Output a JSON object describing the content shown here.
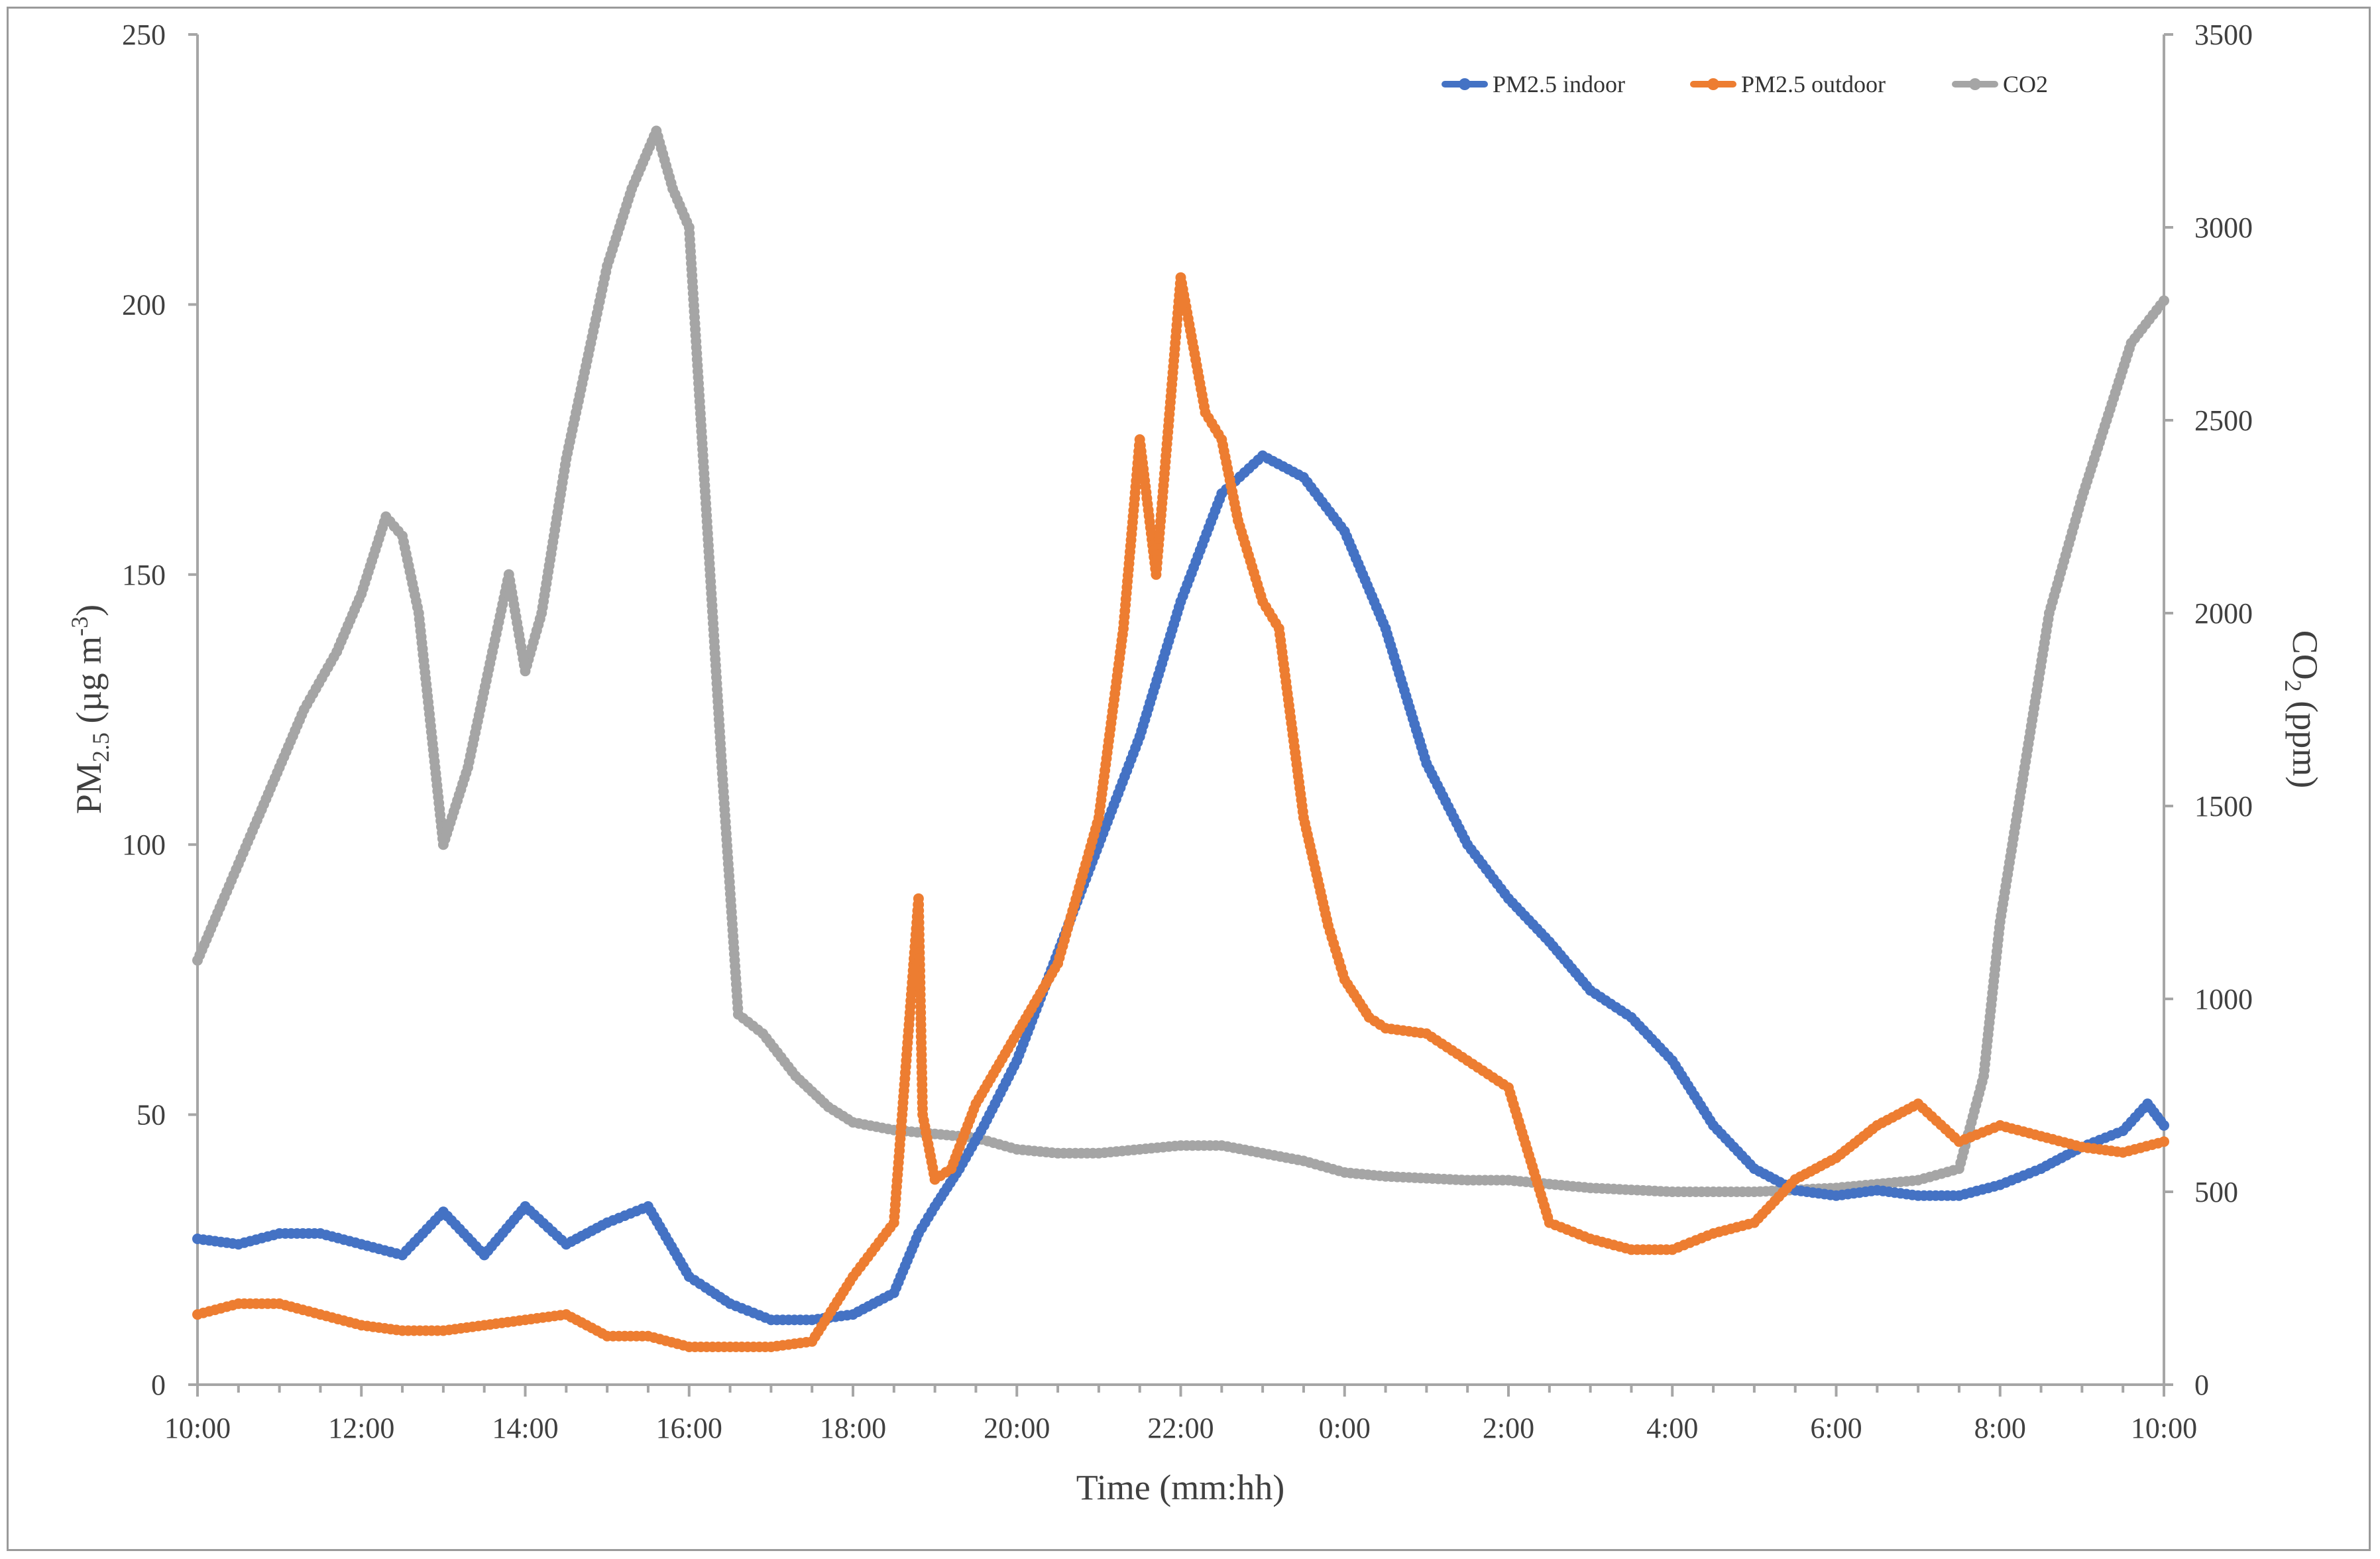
{
  "chart_data": {
    "type": "line",
    "title": "",
    "xlabel": "Time (mm:hh)",
    "ylabel_left": {
      "main": "PM",
      "sub": "2.5",
      "after": " (µg m",
      "sup": "-3",
      "close": ")"
    },
    "ylabel_right": {
      "main": "CO",
      "sub": "2",
      "after": " (ppm)"
    },
    "ylim_left": [
      0,
      250
    ],
    "ylim_right": [
      0,
      3500
    ],
    "xlim_hours": [
      0,
      24
    ],
    "yticks_left": [
      "0",
      "50",
      "100",
      "150",
      "200",
      "250"
    ],
    "yticks_right": [
      "0",
      "500",
      "1000",
      "1500",
      "2000",
      "2500",
      "3000",
      "3500"
    ],
    "xticks": [
      "10:00",
      "12:00",
      "14:00",
      "16:00",
      "18:00",
      "20:00",
      "22:00",
      "0:00",
      "2:00",
      "4:00",
      "6:00",
      "8:00",
      "10:00"
    ],
    "legend_position": "top-right",
    "series": [
      {
        "name": "PM2.5 indoor",
        "axis": "left",
        "color": "#4472C4",
        "x": [
          0,
          0.5,
          1.0,
          1.5,
          2.0,
          2.5,
          3.0,
          3.5,
          4.0,
          4.5,
          5.0,
          5.5,
          6.0,
          6.2,
          6.5,
          7.0,
          7.5,
          8.0,
          8.5,
          8.8,
          9.0,
          9.3,
          9.6,
          10.0,
          10.5,
          11.0,
          11.5,
          12.0,
          12.5,
          13.0,
          13.5,
          14.0,
          14.5,
          15.0,
          15.5,
          16.0,
          16.5,
          17.0,
          17.5,
          18.0,
          18.5,
          19.0,
          19.5,
          20.0,
          20.5,
          21.0,
          21.5,
          22.0,
          22.5,
          23.0,
          23.5,
          23.8,
          24.0
        ],
        "values": [
          27,
          26,
          28,
          28,
          26,
          24,
          32,
          24,
          33,
          26,
          30,
          33,
          20,
          18,
          15,
          12,
          12,
          13,
          17,
          28,
          33,
          40,
          48,
          60,
          80,
          100,
          120,
          145,
          165,
          172,
          168,
          158,
          140,
          115,
          100,
          90,
          82,
          73,
          68,
          60,
          48,
          40,
          36,
          35,
          36,
          35,
          35,
          37,
          40,
          44,
          47,
          52,
          48
        ]
      },
      {
        "name": "PM2.5 outdoor",
        "axis": "left",
        "color": "#ED7D31",
        "x": [
          0,
          0.5,
          1.0,
          1.5,
          2.0,
          2.5,
          3.0,
          3.5,
          4.0,
          4.5,
          5.0,
          5.5,
          6.0,
          6.5,
          7.0,
          7.5,
          8.0,
          8.5,
          8.8,
          8.85,
          9.0,
          9.2,
          9.5,
          10.0,
          10.5,
          11.0,
          11.3,
          11.5,
          11.7,
          12.0,
          12.3,
          12.5,
          12.7,
          13.0,
          13.2,
          13.5,
          13.8,
          14.0,
          14.3,
          14.5,
          15.0,
          15.5,
          16.0,
          16.5,
          17.0,
          17.5,
          18.0,
          18.5,
          19.0,
          19.5,
          20.0,
          20.5,
          21.0,
          21.5,
          22.0,
          22.5,
          23.0,
          23.5,
          24.0
        ],
        "values": [
          13,
          15,
          15,
          13,
          11,
          10,
          10,
          11,
          12,
          13,
          9,
          9,
          7,
          7,
          7,
          8,
          20,
          30,
          90,
          50,
          38,
          40,
          52,
          65,
          78,
          105,
          140,
          175,
          150,
          205,
          180,
          175,
          160,
          145,
          140,
          105,
          85,
          75,
          68,
          66,
          65,
          60,
          55,
          30,
          27,
          25,
          25,
          28,
          30,
          38,
          42,
          48,
          52,
          45,
          48,
          46,
          44,
          43,
          45
        ]
      },
      {
        "name": "CO2",
        "axis": "right",
        "color": "#A5A5A5",
        "x": [
          0,
          0.3,
          0.7,
          1.0,
          1.3,
          1.7,
          2.0,
          2.3,
          2.5,
          2.7,
          2.9,
          3.0,
          3.3,
          3.6,
          3.8,
          4.0,
          4.2,
          4.5,
          4.8,
          5.0,
          5.3,
          5.6,
          5.8,
          6.0,
          6.2,
          6.4,
          6.6,
          6.9,
          7.3,
          7.7,
          8.0,
          8.5,
          9.0,
          9.5,
          10.0,
          10.5,
          11.0,
          11.5,
          12.0,
          12.5,
          13.0,
          13.5,
          14.0,
          14.5,
          15.0,
          15.5,
          16.0,
          16.5,
          17.0,
          17.5,
          18.0,
          18.5,
          19.0,
          19.5,
          20.0,
          20.5,
          21.0,
          21.5,
          21.8,
          22.0,
          22.3,
          22.6,
          23.0,
          23.3,
          23.6,
          24.0
        ],
        "values": [
          1100,
          1250,
          1450,
          1600,
          1750,
          1900,
          2050,
          2250,
          2200,
          2000,
          1600,
          1400,
          1600,
          1900,
          2100,
          1850,
          2000,
          2400,
          2700,
          2900,
          3100,
          3250,
          3100,
          3000,
          2300,
          1600,
          960,
          910,
          800,
          720,
          680,
          660,
          650,
          640,
          610,
          600,
          600,
          610,
          620,
          620,
          600,
          580,
          550,
          540,
          535,
          530,
          530,
          520,
          510,
          505,
          500,
          500,
          500,
          505,
          510,
          520,
          530,
          560,
          800,
          1200,
          1600,
          2000,
          2300,
          2500,
          2700,
          2810
        ]
      }
    ]
  }
}
